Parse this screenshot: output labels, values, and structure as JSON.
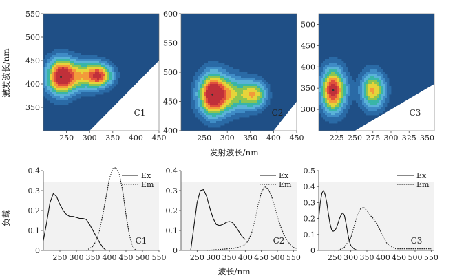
{
  "figure": {
    "ex_axis_label": "激发波长/nm",
    "em_axis_label": "发射波长/nm",
    "loading_axis_label": "负载",
    "wavelength_axis_label": "波长/nm"
  },
  "colors": {
    "background": "#1f4f86",
    "contour_levels": [
      "#2a6aa6",
      "#3f8cc6",
      "#5ab2d8",
      "#39b5a7",
      "#8cc552",
      "#e6d43a",
      "#f39a3a",
      "#e0503c",
      "#c0303a"
    ],
    "unmeasured": "#ffffff",
    "plot_bg": "#f2f2f2"
  },
  "chart_data": [
    {
      "type": "heatmap",
      "label": "C1",
      "xlabel": "发射波长/nm",
      "ylabel": "激发波长/nm",
      "xlim": [
        200,
        450
      ],
      "ylim": [
        300,
        550
      ],
      "xticks": [
        250,
        300,
        350,
        400,
        450
      ],
      "yticks": [
        350,
        400,
        450,
        500,
        550
      ],
      "peaks": [
        {
          "x": 238,
          "y": 415,
          "sx": 22,
          "sy": 28,
          "amp": 1.0
        },
        {
          "x": 295,
          "y": 418,
          "sx": 30,
          "sy": 22,
          "amp": 0.62
        },
        {
          "x": 325,
          "y": 418,
          "sx": 18,
          "sy": 16,
          "amp": 0.55
        }
      ]
    },
    {
      "type": "heatmap",
      "label": "C2",
      "xlabel": "发射波长/nm",
      "ylabel": "",
      "xlim": [
        200,
        450
      ],
      "ylim": [
        400,
        600
      ],
      "xticks": [
        250,
        300,
        350,
        400,
        450
      ],
      "yticks": [
        400,
        450,
        500,
        550,
        600
      ],
      "peaks": [
        {
          "x": 268,
          "y": 462,
          "sx": 22,
          "sy": 26,
          "amp": 1.0
        },
        {
          "x": 315,
          "y": 462,
          "sx": 30,
          "sy": 22,
          "amp": 0.5
        },
        {
          "x": 360,
          "y": 462,
          "sx": 18,
          "sy": 16,
          "amp": 0.55
        }
      ]
    },
    {
      "type": "heatmap",
      "label": "C3",
      "xlabel": "",
      "ylabel": "",
      "xlim": [
        200,
        360
      ],
      "ylim": [
        250,
        525
      ],
      "xticks": [
        225,
        250,
        275,
        300,
        325,
        350
      ],
      "yticks": [
        300,
        350,
        400,
        450,
        500
      ],
      "peaks": [
        {
          "x": 220,
          "y": 345,
          "sx": 12,
          "sy": 36,
          "amp": 1.0
        },
        {
          "x": 275,
          "y": 345,
          "sx": 12,
          "sy": 30,
          "amp": 0.72
        }
      ]
    },
    {
      "type": "line",
      "label": "C1",
      "xlabel": "",
      "ylabel": "负载",
      "xlim": [
        200,
        550
      ],
      "ylim": [
        0,
        0.4
      ],
      "xticks": [
        250,
        300,
        350,
        400,
        450,
        500,
        550
      ],
      "yticks": [
        0,
        0.1,
        0.2,
        0.3,
        0.4
      ],
      "series": [
        {
          "name": "Ex",
          "dash": "solid",
          "x": [
            200,
            210,
            220,
            230,
            240,
            250,
            260,
            270,
            280,
            290,
            300,
            310,
            320,
            330,
            340,
            350,
            360,
            370,
            380,
            390
          ],
          "y": [
            0.05,
            0.14,
            0.24,
            0.285,
            0.27,
            0.23,
            0.2,
            0.18,
            0.17,
            0.17,
            0.165,
            0.16,
            0.16,
            0.155,
            0.13,
            0.1,
            0.07,
            0.04,
            0.015,
            0.0
          ]
        },
        {
          "name": "Em",
          "dash": "dotted",
          "x": [
            330,
            350,
            360,
            370,
            380,
            390,
            400,
            410,
            420,
            430,
            440,
            450,
            460,
            470,
            480
          ],
          "y": [
            0.0,
            0.02,
            0.05,
            0.1,
            0.18,
            0.27,
            0.36,
            0.41,
            0.415,
            0.38,
            0.3,
            0.18,
            0.08,
            0.02,
            0.0
          ]
        }
      ]
    },
    {
      "type": "line",
      "label": "C2",
      "xlabel": "波长/nm",
      "ylabel": "",
      "xlim": [
        200,
        560
      ],
      "ylim": [
        0,
        0.4
      ],
      "xticks": [
        250,
        300,
        350,
        400,
        450,
        500,
        550
      ],
      "yticks": [
        0,
        0.1,
        0.2,
        0.3,
        0.4
      ],
      "series": [
        {
          "name": "Ex",
          "dash": "solid",
          "x": [
            230,
            240,
            250,
            260,
            270,
            280,
            290,
            300,
            310,
            320,
            330,
            340,
            350,
            360,
            370,
            380,
            390,
            400
          ],
          "y": [
            0.0,
            0.12,
            0.24,
            0.3,
            0.305,
            0.27,
            0.21,
            0.16,
            0.13,
            0.125,
            0.13,
            0.14,
            0.145,
            0.14,
            0.12,
            0.095,
            0.07,
            0.055
          ]
        },
        {
          "name": "Em",
          "dash": "dotted",
          "x": [
            280,
            320,
            360,
            380,
            400,
            410,
            420,
            430,
            440,
            450,
            460,
            470,
            480,
            490,
            500,
            510,
            520,
            530,
            540,
            550,
            560
          ],
          "y": [
            0.0,
            0.005,
            0.01,
            0.015,
            0.03,
            0.05,
            0.09,
            0.15,
            0.23,
            0.29,
            0.32,
            0.31,
            0.28,
            0.23,
            0.17,
            0.12,
            0.08,
            0.05,
            0.03,
            0.015,
            0.01
          ]
        }
      ]
    },
    {
      "type": "line",
      "label": "C3",
      "xlabel": "",
      "ylabel": "",
      "xlim": [
        200,
        560
      ],
      "ylim": [
        0,
        0.5
      ],
      "xticks": [
        250,
        300,
        350,
        400,
        450,
        500,
        550
      ],
      "yticks": [
        0,
        0.1,
        0.2,
        0.3,
        0.4,
        0.5
      ],
      "series": [
        {
          "name": "Ex",
          "dash": "solid",
          "x": [
            200,
            205,
            210,
            215,
            220,
            225,
            230,
            235,
            240,
            245,
            250,
            255,
            260,
            265,
            270,
            275,
            280,
            285,
            290,
            295,
            300,
            310,
            320
          ],
          "y": [
            0.2,
            0.3,
            0.36,
            0.375,
            0.35,
            0.3,
            0.23,
            0.17,
            0.13,
            0.12,
            0.125,
            0.14,
            0.17,
            0.2,
            0.225,
            0.235,
            0.22,
            0.17,
            0.11,
            0.06,
            0.03,
            0.01,
            0.0
          ]
        },
        {
          "name": "Em",
          "dash": "dotted",
          "x": [
            260,
            280,
            300,
            310,
            320,
            330,
            340,
            350,
            360,
            370,
            380,
            390,
            400,
            410,
            420,
            430,
            440,
            460,
            500,
            550
          ],
          "y": [
            0.0,
            0.02,
            0.08,
            0.15,
            0.22,
            0.26,
            0.27,
            0.25,
            0.22,
            0.2,
            0.17,
            0.13,
            0.09,
            0.05,
            0.03,
            0.02,
            0.01,
            0.01,
            0.01,
            0.01
          ]
        }
      ]
    }
  ]
}
